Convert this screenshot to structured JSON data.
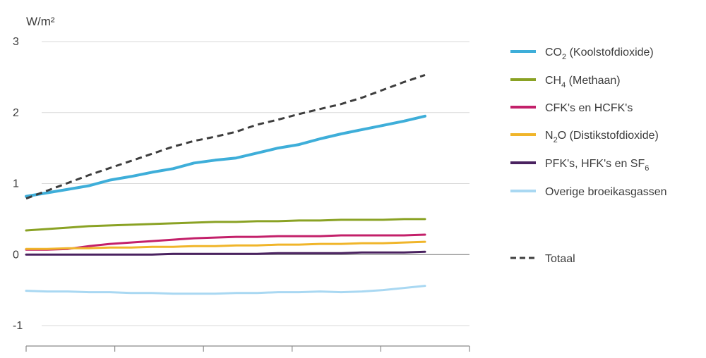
{
  "chart_data": {
    "type": "line",
    "unit_label": "W/m²",
    "y_ticks": [
      3,
      2,
      1,
      0,
      -1
    ],
    "y_tick_labels": [
      "3",
      "2",
      "1",
      "0",
      "-1"
    ],
    "ylim": [
      -1.3,
      3
    ],
    "x_segments": 5,
    "grid": true,
    "legend_position": "right",
    "legend": [
      {
        "key": "co2",
        "text": "CO",
        "sub": "2",
        "after": " (Koolstofdioxide)",
        "color": "#3eaed9",
        "dashed": false
      },
      {
        "key": "ch4",
        "text": "CH",
        "sub": "4",
        "after": " (Methaan)",
        "color": "#8aa224",
        "dashed": false
      },
      {
        "key": "cfk",
        "text": "CFK's en HCFK's",
        "sub": "",
        "after": "",
        "color": "#c3206a",
        "dashed": false
      },
      {
        "key": "n2o",
        "text": "N",
        "sub": "2",
        "after": "O (Distikstofdioxide)",
        "color": "#f0b52a",
        "dashed": false
      },
      {
        "key": "pfk",
        "text": "PFK's, HFK's en SF",
        "sub": "6",
        "after": "",
        "color": "#4a2260",
        "dashed": false
      },
      {
        "key": "overig",
        "text": "Overige broeikasgassen",
        "sub": "",
        "after": "",
        "color": "#a9d8f2",
        "dashed": false
      },
      {
        "key": "totaal",
        "text": "Totaal",
        "sub": "",
        "after": "",
        "color": "#3d3d3d",
        "dashed": true
      }
    ],
    "series": [
      {
        "key": "co2",
        "color": "#3eaed9",
        "dashed": false,
        "width": 4,
        "values": [
          0.82,
          0.87,
          0.92,
          0.97,
          1.05,
          1.1,
          1.16,
          1.21,
          1.29,
          1.33,
          1.36,
          1.43,
          1.5,
          1.55,
          1.63,
          1.7,
          1.76,
          1.82,
          1.88,
          1.95
        ]
      },
      {
        "key": "ch4",
        "color": "#8aa224",
        "dashed": false,
        "width": 3,
        "values": [
          0.34,
          0.36,
          0.38,
          0.4,
          0.41,
          0.42,
          0.43,
          0.44,
          0.45,
          0.46,
          0.46,
          0.47,
          0.47,
          0.48,
          0.48,
          0.49,
          0.49,
          0.49,
          0.5,
          0.5
        ]
      },
      {
        "key": "cfk",
        "color": "#c3206a",
        "dashed": false,
        "width": 3,
        "values": [
          0.07,
          0.07,
          0.08,
          0.12,
          0.15,
          0.17,
          0.19,
          0.21,
          0.23,
          0.24,
          0.25,
          0.25,
          0.26,
          0.26,
          0.26,
          0.27,
          0.27,
          0.27,
          0.27,
          0.28
        ]
      },
      {
        "key": "n2o",
        "color": "#f0b52a",
        "dashed": false,
        "width": 3,
        "values": [
          0.08,
          0.08,
          0.09,
          0.09,
          0.1,
          0.1,
          0.11,
          0.11,
          0.12,
          0.12,
          0.13,
          0.13,
          0.14,
          0.14,
          0.15,
          0.15,
          0.16,
          0.16,
          0.17,
          0.18
        ]
      },
      {
        "key": "pfk",
        "color": "#4a2260",
        "dashed": false,
        "width": 3,
        "values": [
          0.0,
          0.0,
          0.0,
          0.0,
          0.0,
          0.0,
          0.0,
          0.01,
          0.01,
          0.01,
          0.01,
          0.01,
          0.02,
          0.02,
          0.02,
          0.02,
          0.03,
          0.03,
          0.03,
          0.04
        ]
      },
      {
        "key": "overig",
        "color": "#a9d8f2",
        "dashed": false,
        "width": 3,
        "values": [
          -0.51,
          -0.52,
          -0.52,
          -0.53,
          -0.53,
          -0.54,
          -0.54,
          -0.55,
          -0.55,
          -0.55,
          -0.54,
          -0.54,
          -0.53,
          -0.53,
          -0.52,
          -0.53,
          -0.52,
          -0.5,
          -0.47,
          -0.44
        ]
      },
      {
        "key": "totaal",
        "color": "#3d3d3d",
        "dashed": true,
        "width": 3,
        "values": [
          0.79,
          0.9,
          1.01,
          1.12,
          1.22,
          1.32,
          1.42,
          1.52,
          1.6,
          1.66,
          1.73,
          1.83,
          1.9,
          1.98,
          2.05,
          2.12,
          2.21,
          2.32,
          2.43,
          2.53
        ]
      }
    ]
  }
}
